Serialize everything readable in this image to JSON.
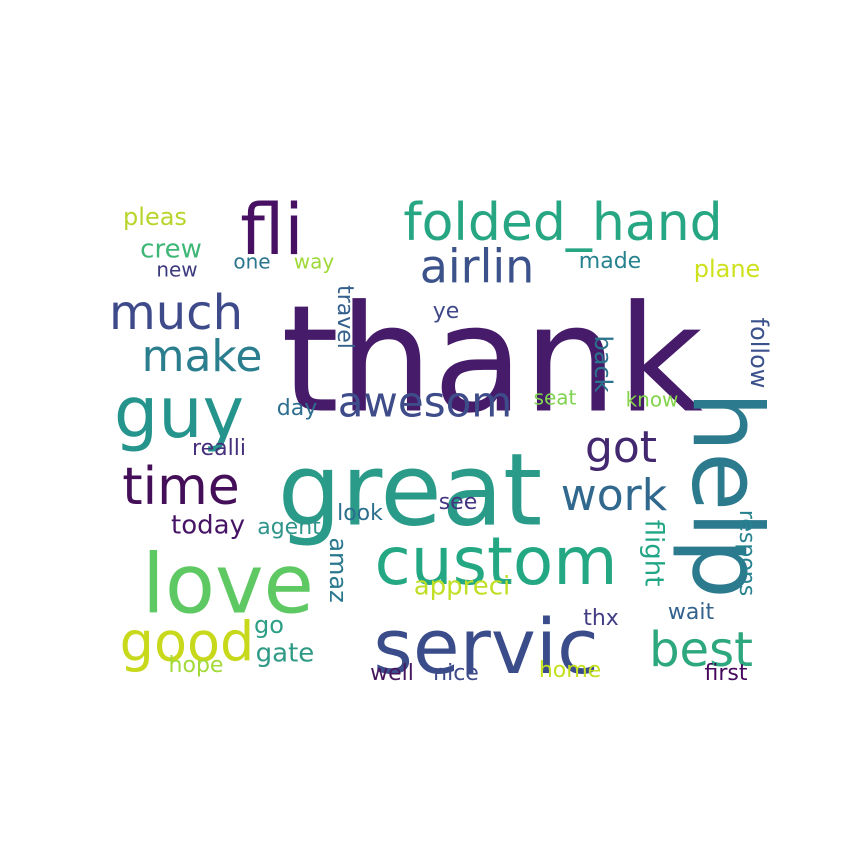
{
  "words": [
    {
      "text": "thank",
      "color": "#461b69"
    },
    {
      "text": "great",
      "color": "#2a9b88"
    },
    {
      "text": "help",
      "color": "#2b7a8e"
    },
    {
      "text": "custom",
      "color": "#24a884"
    },
    {
      "text": "servic",
      "color": "#3a4c8a"
    },
    {
      "text": "love",
      "color": "#5ec962"
    },
    {
      "text": "fli",
      "color": "#471063"
    },
    {
      "text": "folded_hand",
      "color": "#26a682"
    },
    {
      "text": "airlin",
      "color": "#3b528b"
    },
    {
      "text": "guy",
      "color": "#25948c"
    },
    {
      "text": "much",
      "color": "#3f4a8a"
    },
    {
      "text": "time",
      "color": "#440f58"
    },
    {
      "text": "good",
      "color": "#c8d81a"
    },
    {
      "text": "best",
      "color": "#2da77e"
    },
    {
      "text": "make",
      "color": "#2b7e8e"
    },
    {
      "text": "awesom",
      "color": "#3e4c8a"
    },
    {
      "text": "got",
      "color": "#43276f"
    },
    {
      "text": "work",
      "color": "#31688e"
    },
    {
      "text": "pleas",
      "color": "#b7d52a"
    },
    {
      "text": "crew",
      "color": "#3eb776"
    },
    {
      "text": "new",
      "color": "#3d3a7f"
    },
    {
      "text": "one",
      "color": "#2a768e"
    },
    {
      "text": "way",
      "color": "#9fd938"
    },
    {
      "text": "made",
      "color": "#26828e"
    },
    {
      "text": "plane",
      "color": "#cde11d"
    },
    {
      "text": "ye",
      "color": "#3f4889"
    },
    {
      "text": "travel",
      "color": "#34608d"
    },
    {
      "text": "back",
      "color": "#2c738e"
    },
    {
      "text": "follow",
      "color": "#3a518b"
    },
    {
      "text": "seat",
      "color": "#7ed34f"
    },
    {
      "text": "know",
      "color": "#84d44b"
    },
    {
      "text": "day",
      "color": "#2e6e8e"
    },
    {
      "text": "realli",
      "color": "#462f7c"
    },
    {
      "text": "look",
      "color": "#2b6f8e"
    },
    {
      "text": "see",
      "color": "#453581"
    },
    {
      "text": "today",
      "color": "#471365"
    },
    {
      "text": "agent",
      "color": "#2f958a"
    },
    {
      "text": "amaz",
      "color": "#2a788e"
    },
    {
      "text": "flight",
      "color": "#21a685"
    },
    {
      "text": "respons",
      "color": "#26828e"
    },
    {
      "text": "appreci",
      "color": "#c0df25"
    },
    {
      "text": "thx",
      "color": "#433d84"
    },
    {
      "text": "wait",
      "color": "#33628d"
    },
    {
      "text": "go",
      "color": "#2c9f84"
    },
    {
      "text": "gate",
      "color": "#2e9a85"
    },
    {
      "text": "hope",
      "color": "#a2da37"
    },
    {
      "text": "well",
      "color": "#46175f"
    },
    {
      "text": "nice",
      "color": "#3e4a89"
    },
    {
      "text": "home",
      "color": "#c5e021"
    },
    {
      "text": "first",
      "color": "#46085c"
    }
  ]
}
